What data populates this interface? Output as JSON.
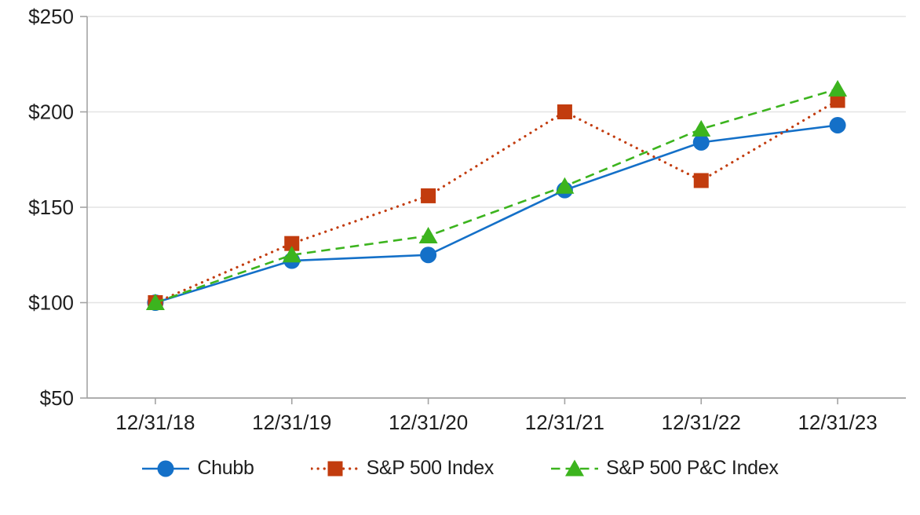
{
  "chart_data": {
    "type": "line",
    "title": "",
    "xlabel": "",
    "ylabel": "",
    "categories": [
      "12/31/18",
      "12/31/19",
      "12/31/20",
      "12/31/21",
      "12/31/22",
      "12/31/23"
    ],
    "series": [
      {
        "name": "Chubb",
        "values": [
          100,
          122,
          125,
          159,
          184,
          193
        ],
        "color": "#1470c8",
        "marker": "circle",
        "line_style": "solid"
      },
      {
        "name": "S&P 500 Index",
        "values": [
          100,
          131,
          156,
          200,
          164,
          206
        ],
        "color": "#c23c0e",
        "marker": "square",
        "line_style": "dotted"
      },
      {
        "name": "S&P 500 P&C Index",
        "values": [
          100,
          125,
          135,
          161,
          191,
          212
        ],
        "color": "#3cb41e",
        "marker": "triangle",
        "line_style": "dashed"
      }
    ],
    "ylim": [
      50,
      250
    ],
    "y_tick_values": [
      50,
      100,
      150,
      200,
      250
    ],
    "y_tick_labels": [
      "$50",
      "$100",
      "$150",
      "$200",
      "$250"
    ],
    "grid": "horizontal",
    "legend_position": "bottom",
    "axis_color": "#a3a3a3",
    "grid_color": "#e4e4e4",
    "text_color": "#1f1f1f"
  }
}
